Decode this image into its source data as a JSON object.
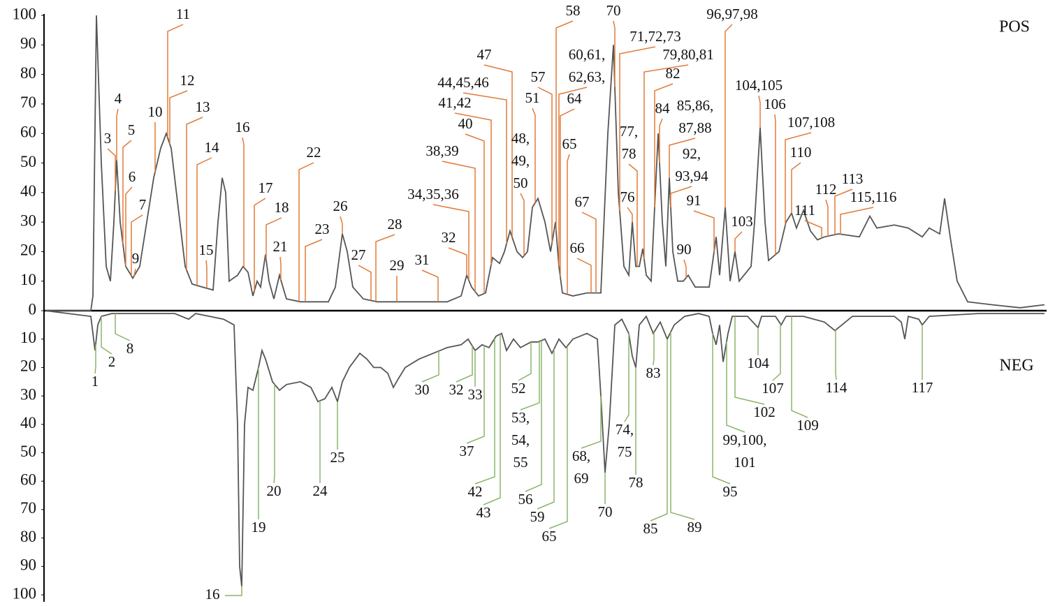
{
  "chart_data": {
    "type": "line",
    "xlim": [
      65,
      1495
    ],
    "ylim": [
      0,
      100
    ],
    "yticks": [
      0,
      10,
      20,
      30,
      40,
      50,
      60,
      70,
      80,
      90,
      100
    ],
    "y2lim": [
      0,
      100
    ],
    "y2ticks": [
      10,
      20,
      30,
      40,
      50,
      60,
      70,
      80,
      90,
      100
    ],
    "y2_inverted": true,
    "series": [
      {
        "name": "POS",
        "color": "#555555",
        "annotation_color": "#e07b39",
        "x": [
          65,
          130,
          133,
          138,
          145,
          152,
          158,
          163,
          167,
          172,
          180,
          190,
          200,
          210,
          220,
          230,
          238,
          245,
          255,
          265,
          275,
          290,
          305,
          312,
          318,
          323,
          328,
          340,
          348,
          355,
          362,
          368,
          373,
          380,
          385,
          392,
          400,
          405,
          410,
          430,
          450,
          470,
          480,
          490,
          497,
          505,
          520,
          540,
          560,
          580,
          600,
          620,
          640,
          660,
          668,
          675,
          685,
          695,
          705,
          715,
          722,
          730,
          740,
          748,
          755,
          762,
          770,
          780,
          788,
          795,
          800,
          805,
          820,
          840,
          860,
          870,
          878,
          885,
          893,
          900,
          905,
          910,
          915,
          920,
          925,
          932,
          942,
          948,
          953,
          958,
          963,
          970,
          978,
          985,
          995,
          1015,
          1025,
          1030,
          1038,
          1045,
          1052,
          1058,
          1075,
          1080,
          1088,
          1095,
          1100,
          1115,
          1125,
          1133,
          1140,
          1150,
          1160,
          1170,
          1180,
          1200,
          1230,
          1245,
          1255,
          1280,
          1300,
          1320,
          1330,
          1345,
          1352,
          1360,
          1370,
          1385,
          1420,
          1460,
          1495
        ],
        "values": [
          0,
          0,
          5,
          100,
          50,
          15,
          10,
          30,
          51,
          30,
          15,
          11,
          15,
          30,
          45,
          55,
          60,
          55,
          35,
          15,
          9,
          8,
          7,
          30,
          45,
          40,
          10,
          12,
          15,
          13,
          5,
          10,
          8,
          19,
          10,
          4,
          12,
          8,
          4,
          3,
          3,
          3,
          8,
          26,
          20,
          8,
          4,
          3,
          3,
          3,
          3,
          3,
          3,
          5,
          12,
          8,
          5,
          6,
          18,
          16,
          20,
          27,
          20,
          18,
          20,
          35,
          38,
          30,
          20,
          30,
          15,
          6,
          5,
          6,
          6,
          60,
          90,
          40,
          15,
          12,
          30,
          15,
          15,
          21,
          12,
          10,
          60,
          30,
          15,
          45,
          20,
          10,
          10,
          12,
          8,
          8,
          25,
          12,
          35,
          10,
          20,
          10,
          15,
          30,
          62,
          30,
          17,
          20,
          30,
          33,
          28,
          34,
          27,
          24,
          25,
          26,
          25,
          32,
          28,
          29,
          28,
          25,
          28,
          26,
          38,
          25,
          10,
          3,
          2,
          1,
          2
        ],
        "annotations": [
          {
            "label": "3",
            "x": 165
          },
          {
            "label": "4",
            "x": 167
          },
          {
            "label": "5",
            "x": 176
          },
          {
            "label": "6",
            "x": 180
          },
          {
            "label": "7",
            "x": 188
          },
          {
            "label": "9",
            "x": 192
          },
          {
            "label": "10",
            "x": 222
          },
          {
            "label": "11",
            "x": 240
          },
          {
            "label": "12",
            "x": 243
          },
          {
            "label": "13",
            "x": 267
          },
          {
            "label": "14",
            "x": 282
          },
          {
            "label": "15",
            "x": 296
          },
          {
            "label": "16",
            "x": 349
          },
          {
            "label": "17",
            "x": 364
          },
          {
            "label": "18",
            "x": 381
          },
          {
            "label": "21",
            "x": 402
          },
          {
            "label": "22",
            "x": 428
          },
          {
            "label": "23",
            "x": 437
          },
          {
            "label": "26",
            "x": 490
          },
          {
            "label": "27",
            "x": 531
          },
          {
            "label": "28",
            "x": 538
          },
          {
            "label": "29",
            "x": 568
          },
          {
            "label": "31",
            "x": 627
          },
          {
            "label": "32",
            "x": 668
          },
          {
            "label": "34,35,36",
            "x": 671
          },
          {
            "label": "38,39",
            "x": 680
          },
          {
            "label": "40",
            "x": 693
          },
          {
            "label": "41,42",
            "x": 703
          },
          {
            "label": "44,45,46",
            "x": 725
          },
          {
            "label": "47",
            "x": 733
          },
          {
            "label": [
              "48,",
              "49,",
              "50"
            ],
            "x": 750
          },
          {
            "label": "51",
            "x": 766
          },
          {
            "label": "57",
            "x": 790
          },
          {
            "label": "58",
            "x": 796
          },
          {
            "label": [
              "60,61,",
              "62,63,"
            ],
            "x": 800
          },
          {
            "label": "64",
            "x": 802
          },
          {
            "label": "65",
            "x": 812
          },
          {
            "label": "66",
            "x": 846
          },
          {
            "label": "67",
            "x": 853
          },
          {
            "label": "70",
            "x": 880
          },
          {
            "label": "71,72,73",
            "x": 887
          },
          {
            "label": [
              "77,",
              "78"
            ],
            "x": 912
          },
          {
            "label": "76",
            "x": 905
          },
          {
            "label": "79,80,81",
            "x": 922
          },
          {
            "label": "82",
            "x": 937
          },
          {
            "label": "84",
            "x": 944
          },
          {
            "label": [
              "85,86,",
              "87,88"
            ],
            "x": 958
          },
          {
            "label": [
              "92,",
              "93,94"
            ],
            "x": 960
          },
          {
            "label": "90",
            "x": 982
          },
          {
            "label": "91",
            "x": 1022
          },
          {
            "label": "96,97,98",
            "x": 1038
          },
          {
            "label": "103",
            "x": 1052
          },
          {
            "label": "104,105",
            "x": 1088
          },
          {
            "label": "106",
            "x": 1110
          },
          {
            "label": "107,108",
            "x": 1124
          },
          {
            "label": "110",
            "x": 1133
          },
          {
            "label": "111",
            "x": 1176
          },
          {
            "label": "112",
            "x": 1185
          },
          {
            "label": "113",
            "x": 1195
          },
          {
            "label": "115,116",
            "x": 1203
          }
        ]
      },
      {
        "name": "NEG",
        "color": "#555555",
        "annotation_color": "#8ab56a",
        "axis": "y2",
        "x": [
          65,
          130,
          136,
          140,
          145,
          160,
          200,
          250,
          270,
          280,
          300,
          320,
          335,
          340,
          343,
          346,
          350,
          355,
          362,
          370,
          375,
          380,
          390,
          400,
          410,
          430,
          445,
          455,
          465,
          475,
          483,
          490,
          500,
          515,
          525,
          535,
          545,
          555,
          563,
          570,
          580,
          600,
          620,
          640,
          660,
          670,
          680,
          690,
          700,
          710,
          718,
          725,
          735,
          745,
          760,
          770,
          780,
          790,
          800,
          810,
          820,
          840,
          855,
          860,
          866,
          872,
          880,
          890,
          900,
          905,
          910,
          915,
          925,
          935,
          945,
          955,
          965,
          980,
          1000,
          1015,
          1020,
          1025,
          1030,
          1035,
          1042,
          1048,
          1070,
          1085,
          1090,
          1110,
          1118,
          1125,
          1150,
          1180,
          1195,
          1205,
          1220,
          1280,
          1290,
          1295,
          1300,
          1315,
          1320,
          1330,
          1400,
          1495
        ],
        "values": [
          0,
          2,
          14,
          5,
          2,
          1,
          1,
          1,
          3,
          1,
          2,
          3,
          5,
          40,
          90,
          97,
          40,
          27,
          28,
          20,
          14,
          17,
          25,
          28,
          26,
          25,
          27,
          32,
          31,
          27,
          32,
          25,
          20,
          15,
          17,
          20,
          20,
          22,
          27,
          24,
          20,
          17,
          15,
          13,
          12,
          10,
          14,
          12,
          13,
          9,
          8,
          14,
          10,
          13,
          11,
          11,
          10,
          15,
          10,
          13,
          10,
          8,
          10,
          30,
          57,
          40,
          5,
          3,
          8,
          16,
          20,
          5,
          2,
          8,
          4,
          10,
          5,
          2,
          1,
          2,
          8,
          12,
          5,
          18,
          8,
          2,
          2,
          6,
          2,
          2,
          5,
          2,
          2,
          4,
          7,
          5,
          2,
          2,
          4,
          10,
          2,
          3,
          5,
          2,
          1,
          1
        ],
        "annotations": [
          {
            "label": "1",
            "x": 137
          },
          {
            "label": "2",
            "x": 145
          },
          {
            "label": "8",
            "x": 165
          },
          {
            "label": "16",
            "x": 346
          },
          {
            "label": "19",
            "x": 370
          },
          {
            "label": "20",
            "x": 393
          },
          {
            "label": "24",
            "x": 458
          },
          {
            "label": "25",
            "x": 483
          },
          {
            "label": "30",
            "x": 628
          },
          {
            "label": "32",
            "x": 676
          },
          {
            "label": "33",
            "x": 680
          },
          {
            "label": "37",
            "x": 693
          },
          {
            "label": "42",
            "x": 708
          },
          {
            "label": "43",
            "x": 716
          },
          {
            "label": "52",
            "x": 760
          },
          {
            "label": [
              "53,",
              "54,",
              "55"
            ],
            "x": 772
          },
          {
            "label": "56",
            "x": 775
          },
          {
            "label": "59",
            "x": 793
          },
          {
            "label": "65",
            "x": 812
          },
          {
            "label": [
              "68,",
              "69"
            ],
            "x": 860
          },
          {
            "label": "70",
            "x": 866
          },
          {
            "label": [
              "74,",
              "75"
            ],
            "x": 900
          },
          {
            "label": "78",
            "x": 910
          },
          {
            "label": "83",
            "x": 936
          },
          {
            "label": "85",
            "x": 955
          },
          {
            "label": "89",
            "x": 960
          },
          {
            "label": "95",
            "x": 1020
          },
          {
            "label": [
              "99,100,",
              "101"
            ],
            "x": 1040
          },
          {
            "label": "102",
            "x": 1052
          },
          {
            "label": "104",
            "x": 1085
          },
          {
            "label": "107",
            "x": 1117
          },
          {
            "label": "109",
            "x": 1133
          },
          {
            "label": "114",
            "x": 1196
          },
          {
            "label": "117",
            "x": 1320
          }
        ]
      }
    ]
  }
}
